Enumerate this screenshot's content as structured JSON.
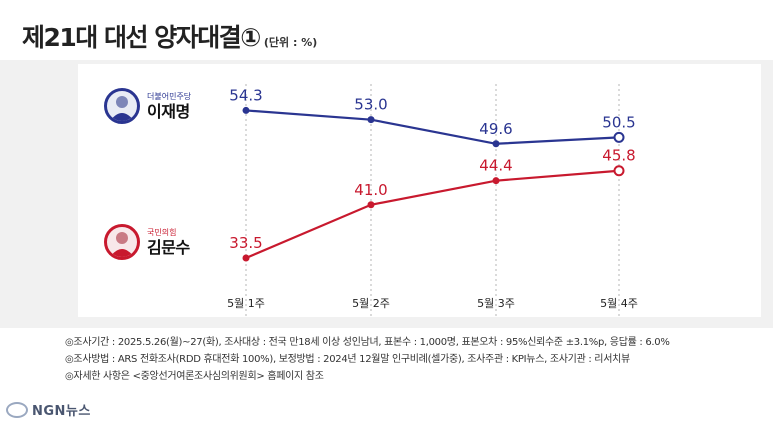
{
  "header": {
    "title": "제21대 대선 양자대결①",
    "unit": "(단위 : %)"
  },
  "candidates": [
    {
      "party": "더불어민주당",
      "name": "이재명",
      "color": "#2a3591"
    },
    {
      "party": "국민의힘",
      "name": "김문수",
      "color": "#c8192e"
    }
  ],
  "chart_data": {
    "type": "line",
    "categories": [
      "5월 1주",
      "5월 2주",
      "5월 3주",
      "5월 4주"
    ],
    "series": [
      {
        "name": "이재명",
        "values": [
          54.3,
          53.0,
          49.6,
          50.5
        ],
        "color": "#2a3591"
      },
      {
        "name": "김문수",
        "values": [
          33.5,
          41.0,
          44.4,
          45.8
        ],
        "color": "#c8192e"
      }
    ],
    "title": "제21대 대선 양자대결①",
    "ylim": [
      28,
      60
    ],
    "grid": false,
    "legend": "left"
  },
  "footer": {
    "notes": [
      "◎조사기간 : 2025.5.26(월)~27(화), 조사대상 : 전국 만18세 이상 성인남녀, 표본수 : 1,000명, 표본오차 : 95%신뢰수준 ±3.1%p, 응답률 : 6.0%",
      "◎조사방법 : ARS 전화조사(RDD 휴대전화 100%), 보정방법 : 2024년 12월말 인구비례(셀가중), 조사주관 : KPI뉴스, 조사기관 : 리서치뷰",
      "◎자세한 사항은 <중앙선거여론조사심의위원회> 홈페이지 참조"
    ],
    "logo": "NGN뉴스"
  }
}
